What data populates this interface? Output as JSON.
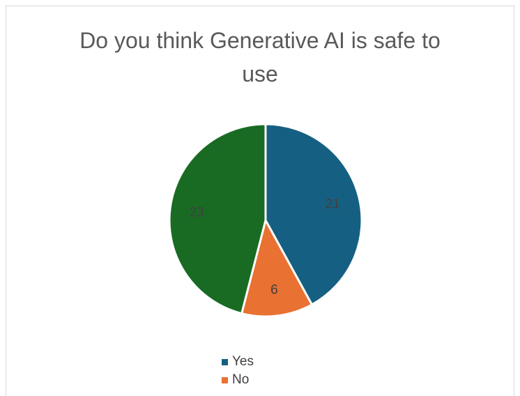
{
  "chart_data": {
    "type": "pie",
    "title_lines": [
      "Do you think Generative AI is safe to",
      "use"
    ],
    "categories": [
      "Yes",
      "No",
      ""
    ],
    "values": [
      21,
      6,
      23
    ],
    "colors": [
      "#156082",
      "#E97132",
      "#196B24"
    ],
    "data_labels": [
      "21",
      "6",
      "23"
    ],
    "legend": [
      "Yes",
      "No"
    ],
    "legend_position": "bottom"
  }
}
